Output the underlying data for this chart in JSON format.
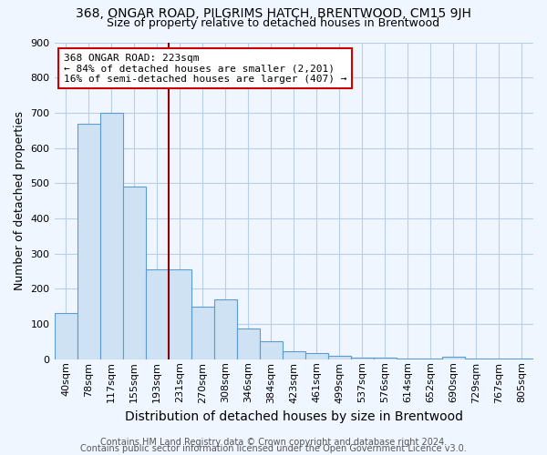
{
  "title": "368, ONGAR ROAD, PILGRIMS HATCH, BRENTWOOD, CM15 9JH",
  "subtitle": "Size of property relative to detached houses in Brentwood",
  "xlabel": "Distribution of detached houses by size in Brentwood",
  "ylabel": "Number of detached properties",
  "categories": [
    "40sqm",
    "78sqm",
    "117sqm",
    "155sqm",
    "193sqm",
    "231sqm",
    "270sqm",
    "308sqm",
    "346sqm",
    "384sqm",
    "423sqm",
    "461sqm",
    "499sqm",
    "537sqm",
    "576sqm",
    "614sqm",
    "652sqm",
    "690sqm",
    "729sqm",
    "767sqm",
    "805sqm"
  ],
  "values": [
    130,
    668,
    700,
    490,
    255,
    255,
    148,
    170,
    88,
    50,
    23,
    18,
    9,
    5,
    4,
    3,
    2,
    8,
    2,
    1,
    1
  ],
  "bar_color": "#cfe2f3",
  "bar_edge_color": "#5b9bd5",
  "annotation_text_lines": [
    "368 ONGAR ROAD: 223sqm",
    "← 84% of detached houses are smaller (2,201)",
    "16% of semi-detached houses are larger (407) →"
  ],
  "annotation_box_color": "#ffffff",
  "annotation_box_edge_color": "#cc0000",
  "vline_color": "#8b0000",
  "vline_x_index": 4.5,
  "ylim": [
    0,
    900
  ],
  "yticks": [
    0,
    100,
    200,
    300,
    400,
    500,
    600,
    700,
    800,
    900
  ],
  "background_color": "#f0f6ff",
  "grid_color": "#b8cfe8",
  "title_fontsize": 10,
  "subtitle_fontsize": 9,
  "axis_xlabel_fontsize": 10,
  "axis_ylabel_fontsize": 9,
  "tick_fontsize": 8,
  "annotation_fontsize": 8,
  "footer_fontsize": 7,
  "footer_line1": "Contains HM Land Registry data © Crown copyright and database right 2024.",
  "footer_line2": "Contains public sector information licensed under the Open Government Licence v3.0."
}
